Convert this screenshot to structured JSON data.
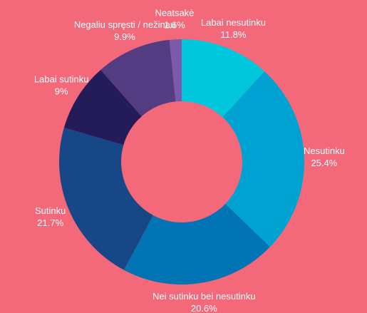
{
  "chart_data": {
    "type": "donut",
    "categories": [
      "Labai nesutinku",
      "Nesutinku",
      "Nei sutinku bei nesutinku",
      "Sutinku",
      "Labai sutinku",
      "Negaliu spręsti / nežinau",
      "Neatsakė"
    ],
    "values": [
      11.8,
      25.4,
      20.6,
      21.7,
      9,
      9.9,
      1.6
    ],
    "value_labels": [
      "11.8%",
      "25.4%",
      "20.6%",
      "21.7%",
      "9%",
      "9.9%",
      "1.6%"
    ],
    "colors": [
      "#00c8dc",
      "#00a2d2",
      "#0074b4",
      "#184788",
      "#241c58",
      "#533c82",
      "#7b5aac"
    ]
  }
}
